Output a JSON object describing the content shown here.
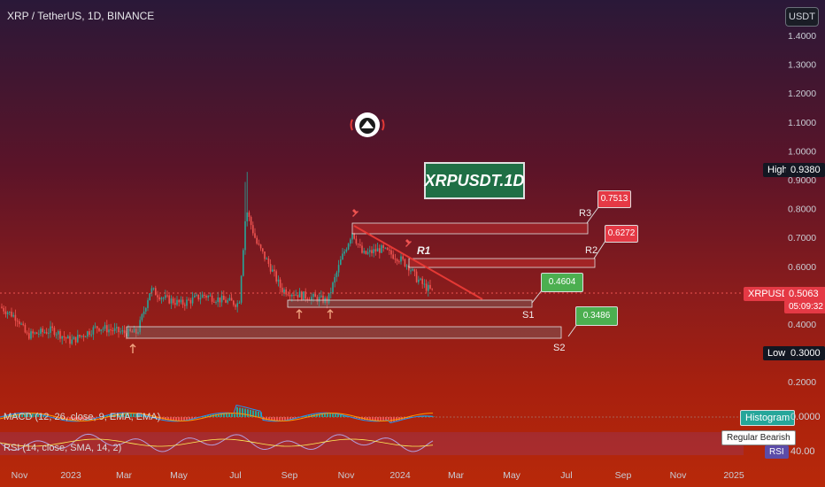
{
  "header": {
    "title": "XRP / TetherUS, 1D, BINANCE",
    "currency": "USDT"
  },
  "chart_title": "XRPUSDT.1D",
  "colors": {
    "up": "#26a69a",
    "down": "#ef5350",
    "resistance": "#e53935",
    "support": "#4caf50",
    "box": "#7a7d82"
  },
  "price_axis": [
    "1.4000",
    "1.3000",
    "1.2000",
    "1.1000",
    "1.0000",
    "0.9000",
    "0.8000",
    "0.7000",
    "0.6000",
    "0.5000",
    "0.4000",
    "0.3000",
    "0.2000"
  ],
  "badges": {
    "high_label": "High",
    "high_value": "0.9380",
    "low_label": "Low",
    "low_value": "0.3000",
    "symbol": "XRPUSDT",
    "price": "0.5063",
    "countdown": "05:09:32",
    "histogram": "Histogram",
    "macd_value": "0.0000",
    "regular_bearish": "Regular Bearish",
    "rsi_tag": "RSI",
    "rsi_value": "40.00"
  },
  "levels": {
    "r3": {
      "label": "R3",
      "value": "0.7513"
    },
    "r2": {
      "label": "R2",
      "value": "0.6272"
    },
    "r1": {
      "label": "R1"
    },
    "s1": {
      "label": "S1",
      "value": "0.4604"
    },
    "s2": {
      "label": "S2",
      "value": "0.3486"
    }
  },
  "indicators": {
    "macd": "MACD (12, 26, close, 9, EMA, EMA)",
    "rsi": "RSI (14, close, SMA, 14, 2)"
  },
  "time_axis": [
    "Nov",
    "2023",
    "Mar",
    "May",
    "Jul",
    "Sep",
    "Nov",
    "2024",
    "Mar",
    "May",
    "Jul",
    "Sep",
    "Nov",
    "2025"
  ],
  "chart_data": {
    "type": "candlestick",
    "title": "XRP / TetherUS, 1D, BINANCE",
    "ylim": [
      0.2,
      1.45
    ],
    "x": [
      "2022-11-01",
      "2023-01-01",
      "2023-02-01",
      "2023-03-01",
      "2023-04-01",
      "2023-05-01",
      "2023-06-01",
      "2023-07-01",
      "2023-07-13",
      "2023-08-01",
      "2023-09-01",
      "2023-10-01",
      "2023-11-01",
      "2023-12-01",
      "2024-01-01",
      "2024-01-20"
    ],
    "close": [
      0.46,
      0.34,
      0.4,
      0.37,
      0.5,
      0.46,
      0.49,
      0.48,
      0.8,
      0.68,
      0.5,
      0.52,
      0.7,
      0.62,
      0.63,
      0.51
    ],
    "high": 0.938,
    "low": 0.3,
    "last": 0.5063,
    "resistance": [
      0.7513,
      0.6272
    ],
    "support": [
      0.4604,
      0.3486
    ]
  }
}
